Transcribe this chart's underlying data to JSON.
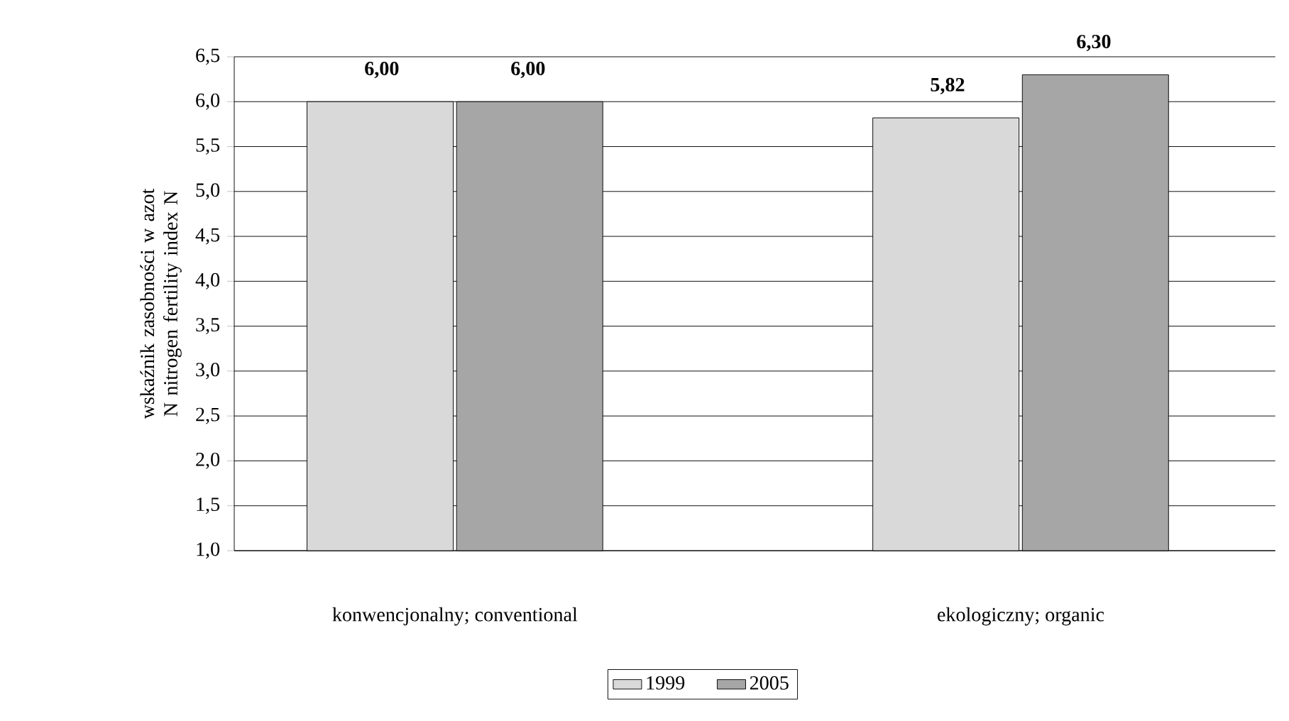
{
  "chart_data": {
    "type": "bar",
    "ylabel": "wskaźnik zasobności w azot N nitrogen fertility index N",
    "categories": [
      "konwencjonalny; conventional",
      "ekologiczny; organic"
    ],
    "series": [
      {
        "name": "1999",
        "color": "#d9d9d9",
        "values": [
          6.0,
          5.82
        ],
        "value_labels": [
          "6,00",
          "5,82"
        ]
      },
      {
        "name": "2005",
        "color": "#a6a6a6",
        "values": [
          6.0,
          6.3
        ],
        "value_labels": [
          "6,00",
          "6,30"
        ]
      }
    ],
    "ylim": [
      1,
      6.5
    ],
    "yticks": [
      {
        "value": 1,
        "label": "1,0"
      },
      {
        "value": 1.5,
        "label": "1,5"
      },
      {
        "value": 2,
        "label": "2,0"
      },
      {
        "value": 2.5,
        "label": "2,5"
      },
      {
        "value": 3,
        "label": "3,0"
      },
      {
        "value": 3.5,
        "label": "3,5"
      },
      {
        "value": 4,
        "label": "4,0"
      },
      {
        "value": 4.5,
        "label": "4,5"
      },
      {
        "value": 5,
        "label": "5,0"
      },
      {
        "value": 5.5,
        "label": "5,5"
      },
      {
        "value": 6,
        "label": "6,0"
      },
      {
        "value": 6.5,
        "label": "6,5"
      }
    ],
    "grid": "y",
    "legend": "bottom"
  }
}
